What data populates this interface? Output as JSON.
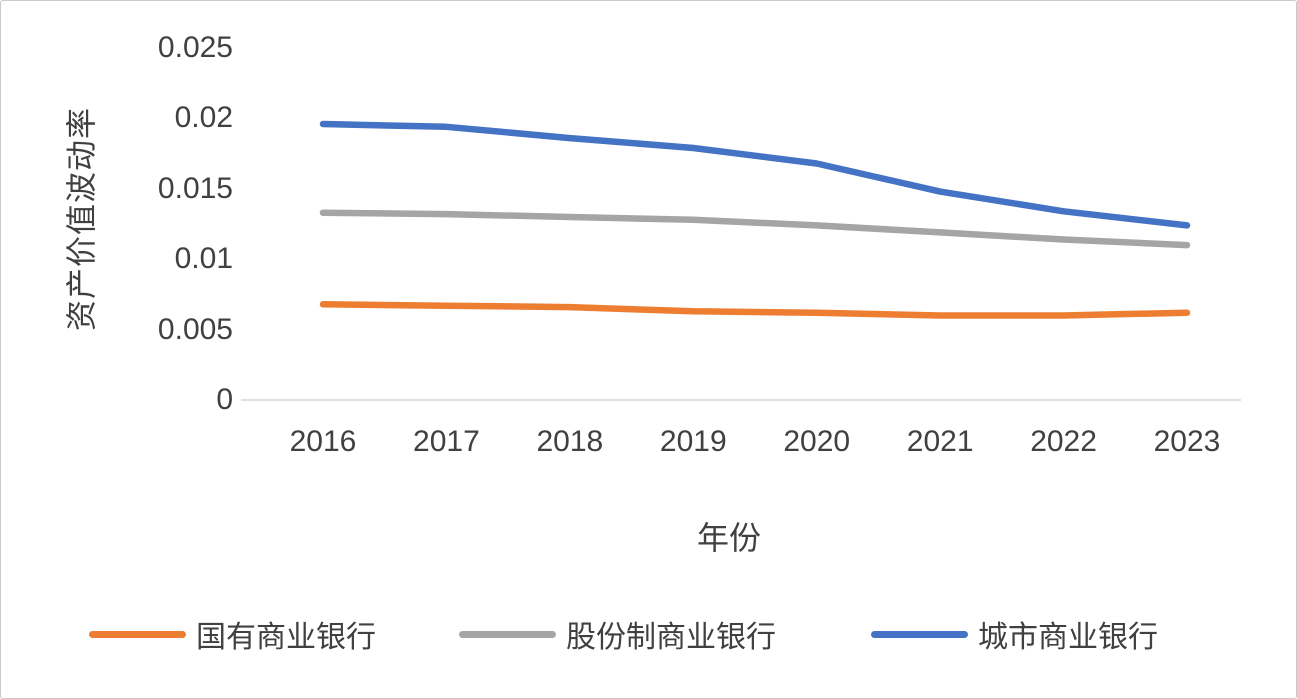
{
  "chart_data": {
    "type": "line",
    "title": "",
    "xlabel": "年份",
    "ylabel": "资产价值波动率",
    "ylim": [
      0,
      0.025
    ],
    "grid": false,
    "legend_position": "bottom",
    "categories": [
      "2016",
      "2017",
      "2018",
      "2019",
      "2020",
      "2021",
      "2022",
      "2023"
    ],
    "y_ticks": [
      {
        "value": 0,
        "label": "0"
      },
      {
        "value": 0.005,
        "label": "0.005"
      },
      {
        "value": 0.01,
        "label": "0.01"
      },
      {
        "value": 0.015,
        "label": "0.015"
      },
      {
        "value": 0.02,
        "label": "0.02"
      },
      {
        "value": 0.025,
        "label": "0.025"
      }
    ],
    "series": [
      {
        "key": "state-owned-commercial-banks",
        "name": "国有商业银行",
        "color": "#ED7D31",
        "values": [
          0.0068,
          0.0067,
          0.0066,
          0.0063,
          0.0062,
          0.006,
          0.006,
          0.0062
        ]
      },
      {
        "key": "joint-stock-commercial-banks",
        "name": "股份制商业银行",
        "color": "#A5A5A5",
        "values": [
          0.0133,
          0.0132,
          0.013,
          0.0128,
          0.0124,
          0.0119,
          0.0114,
          0.011
        ]
      },
      {
        "key": "city-commercial-banks",
        "name": "城市商业银行",
        "color": "#4472C4",
        "values": [
          0.0196,
          0.0194,
          0.0186,
          0.0179,
          0.0168,
          0.0148,
          0.0134,
          0.0124
        ]
      }
    ]
  }
}
